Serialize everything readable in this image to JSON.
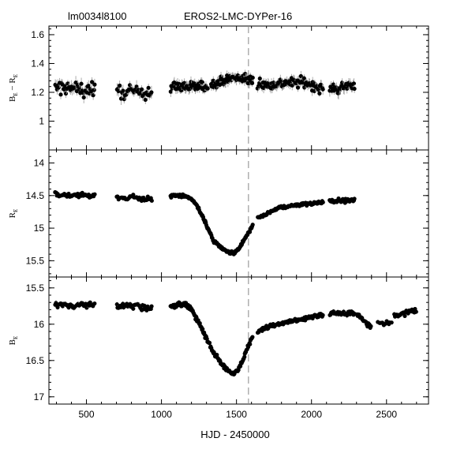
{
  "chart_data": {
    "type": "scatter",
    "titles": {
      "field": "lm0034l8100",
      "star": "EROS2-LMC-DYPer-16"
    },
    "xlabel": "HJD - 2450000",
    "xlim": [
      250,
      2780
    ],
    "xticks": [
      "500",
      "1000",
      "1500",
      "2000",
      "2500"
    ],
    "marker_line_x": 1580,
    "panels": [
      {
        "id": "color",
        "ylabel_main": "B",
        "ylabel_sub": "E",
        "ylabel_minus": " − ",
        "ylabel_main2": "R",
        "ylabel_sub2": "E",
        "ylim": [
          0.8,
          1.66
        ],
        "inverted": false,
        "yticks": [
          "1",
          "1.2",
          "1.4",
          "1.6"
        ],
        "segments": [
          {
            "x": [
              290,
              560
            ],
            "base": 1.23,
            "trend": 0.0,
            "scatter": 0.045,
            "err": 0.035,
            "n": 45
          },
          {
            "x": [
              700,
              940
            ],
            "base": 1.2,
            "trend": 0.0,
            "scatter": 0.04,
            "err": 0.035,
            "n": 35
          },
          {
            "x": [
              1060,
              1310
            ],
            "base": 1.24,
            "trend": 0.01,
            "scatter": 0.03,
            "err": 0.03,
            "n": 70
          },
          {
            "x": [
              1330,
              1610
            ],
            "base": 1.27,
            "trend": 0.02,
            "scatter": 0.025,
            "err": 0.03,
            "n": 80
          },
          {
            "x": [
              1640,
              2080
            ],
            "base": 1.25,
            "trend": 0.0,
            "scatter": 0.03,
            "err": 0.03,
            "n": 90
          },
          {
            "x": [
              2120,
              2290
            ],
            "base": 1.23,
            "trend": 0.0,
            "scatter": 0.03,
            "err": 0.035,
            "n": 35
          }
        ],
        "curve": [
          [
            290,
            1.23
          ],
          [
            560,
            1.22
          ],
          [
            700,
            1.2
          ],
          [
            940,
            1.2
          ],
          [
            1060,
            1.24
          ],
          [
            1300,
            1.24
          ],
          [
            1400,
            1.28
          ],
          [
            1480,
            1.3
          ],
          [
            1560,
            1.29
          ],
          [
            1610,
            1.28
          ],
          [
            1700,
            1.25
          ],
          [
            1850,
            1.27
          ],
          [
            1950,
            1.27
          ],
          [
            2080,
            1.22
          ],
          [
            2120,
            1.22
          ],
          [
            2290,
            1.25
          ]
        ]
      },
      {
        "id": "R",
        "ylabel_main": "R",
        "ylabel_sub": "E",
        "ylim": [
          13.8,
          15.75
        ],
        "inverted": true,
        "yticks": [
          "14",
          "14.5",
          "15",
          "15.5"
        ],
        "segments": [
          {
            "x": [
              290,
              560
            ],
            "scatter": 0.03,
            "err": 0.02,
            "n": 45
          },
          {
            "x": [
              700,
              940
            ],
            "scatter": 0.03,
            "err": 0.02,
            "n": 35
          },
          {
            "x": [
              1060,
              1610
            ],
            "scatter": 0.02,
            "err": 0.015,
            "n": 150
          },
          {
            "x": [
              1640,
              2080
            ],
            "scatter": 0.02,
            "err": 0.015,
            "n": 90
          },
          {
            "x": [
              2120,
              2290
            ],
            "scatter": 0.025,
            "err": 0.02,
            "n": 35
          }
        ],
        "curve": [
          [
            290,
            14.48
          ],
          [
            400,
            14.5
          ],
          [
            560,
            14.5
          ],
          [
            700,
            14.55
          ],
          [
            800,
            14.52
          ],
          [
            940,
            14.57
          ],
          [
            1060,
            14.5
          ],
          [
            1150,
            14.5
          ],
          [
            1200,
            14.55
          ],
          [
            1250,
            14.7
          ],
          [
            1300,
            14.95
          ],
          [
            1350,
            15.2
          ],
          [
            1400,
            15.3
          ],
          [
            1430,
            15.35
          ],
          [
            1480,
            15.38
          ],
          [
            1520,
            15.3
          ],
          [
            1560,
            15.15
          ],
          [
            1610,
            14.95
          ],
          [
            1640,
            14.85
          ],
          [
            1700,
            14.78
          ],
          [
            1800,
            14.68
          ],
          [
            1900,
            14.65
          ],
          [
            2000,
            14.62
          ],
          [
            2080,
            14.6
          ],
          [
            2120,
            14.58
          ],
          [
            2290,
            14.57
          ]
        ]
      },
      {
        "id": "B",
        "ylabel_main": "B",
        "ylabel_sub": "E",
        "ylim": [
          15.35,
          17.1
        ],
        "inverted": true,
        "yticks": [
          "15.5",
          "16",
          "16.5",
          "17"
        ],
        "segments": [
          {
            "x": [
              290,
              560
            ],
            "scatter": 0.03,
            "err": 0.03,
            "n": 45
          },
          {
            "x": [
              700,
              940
            ],
            "scatter": 0.03,
            "err": 0.03,
            "n": 35
          },
          {
            "x": [
              1060,
              1610
            ],
            "scatter": 0.025,
            "err": 0.02,
            "n": 150
          },
          {
            "x": [
              1640,
              2080
            ],
            "scatter": 0.025,
            "err": 0.02,
            "n": 90
          },
          {
            "x": [
              2120,
              2290
            ],
            "scatter": 0.03,
            "err": 0.03,
            "n": 35
          },
          {
            "x": [
              2300,
              2400
            ],
            "scatter": 0.03,
            "err": 0.02,
            "n": 18
          },
          {
            "x": [
              2440,
              2540
            ],
            "scatter": 0.03,
            "err": 0.02,
            "n": 10
          },
          {
            "x": [
              2550,
              2700
            ],
            "scatter": 0.03,
            "err": 0.02,
            "n": 28
          }
        ],
        "curve": [
          [
            290,
            15.72
          ],
          [
            400,
            15.75
          ],
          [
            560,
            15.72
          ],
          [
            700,
            15.75
          ],
          [
            800,
            15.75
          ],
          [
            940,
            15.78
          ],
          [
            1060,
            15.75
          ],
          [
            1150,
            15.72
          ],
          [
            1200,
            15.8
          ],
          [
            1250,
            15.98
          ],
          [
            1300,
            16.2
          ],
          [
            1350,
            16.4
          ],
          [
            1400,
            16.55
          ],
          [
            1430,
            16.62
          ],
          [
            1480,
            16.68
          ],
          [
            1520,
            16.6
          ],
          [
            1560,
            16.4
          ],
          [
            1610,
            16.15
          ],
          [
            1640,
            16.1
          ],
          [
            1700,
            16.05
          ],
          [
            1800,
            15.98
          ],
          [
            1900,
            15.95
          ],
          [
            2000,
            15.9
          ],
          [
            2080,
            15.87
          ],
          [
            2120,
            15.85
          ],
          [
            2290,
            15.85
          ],
          [
            2330,
            15.9
          ],
          [
            2400,
            16.05
          ],
          [
            2440,
            15.98
          ],
          [
            2540,
            15.98
          ],
          [
            2550,
            15.9
          ],
          [
            2700,
            15.8
          ]
        ]
      }
    ]
  }
}
